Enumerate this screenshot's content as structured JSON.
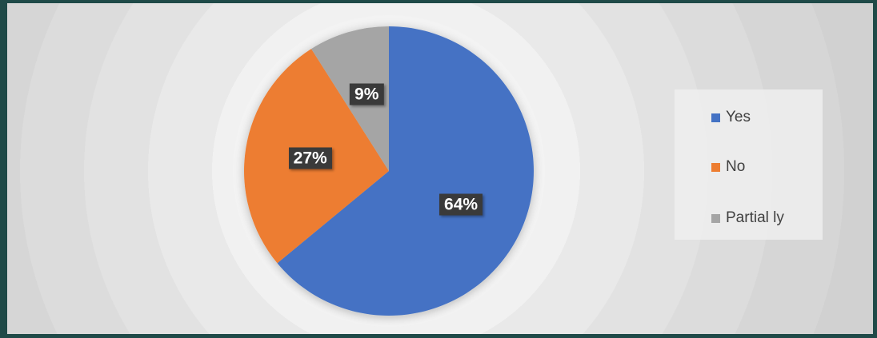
{
  "chart_data": {
    "type": "pie",
    "categories": [
      "Yes",
      "No",
      "Partially"
    ],
    "values": [
      64,
      27,
      9
    ],
    "labels": [
      "64%",
      "27%",
      "9%"
    ],
    "colors": [
      "#4472c4",
      "#ed7d31",
      "#a5a5a5"
    ],
    "legend_position": "right",
    "start": "top, clockwise"
  },
  "legend": {
    "items": [
      {
        "label": "Yes",
        "color": "#4472c4"
      },
      {
        "label": "No",
        "color": "#ed7d31"
      },
      {
        "label": "Partial ly",
        "color": "#a5a5a5"
      }
    ]
  }
}
